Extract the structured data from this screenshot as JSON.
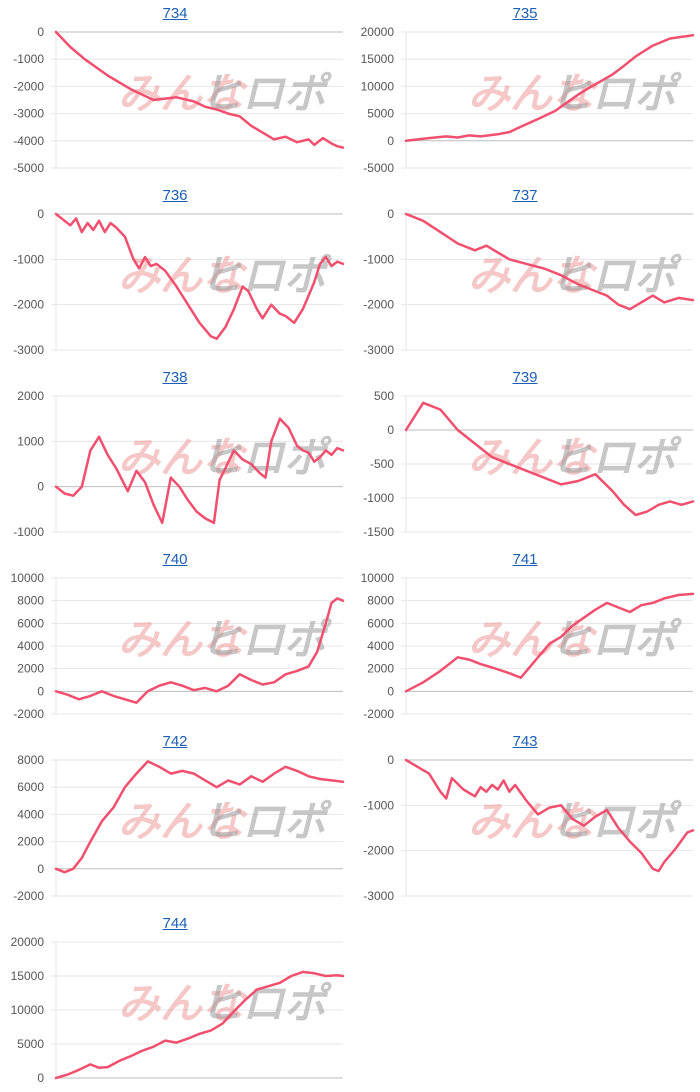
{
  "colors": {
    "line": "#f0506e",
    "grid": "#e6e6e6",
    "axis": "#bdbdbd",
    "title": "#1a5fb4"
  },
  "watermark": {
    "part1": "みんな",
    "part2": "ヒロポ"
  },
  "chart_data": [
    {
      "type": "line",
      "title": "734",
      "ylim": [
        -5000,
        0
      ],
      "yticks": [
        0,
        -1000,
        -2000,
        -3000,
        -4000,
        -5000
      ],
      "x": [
        0,
        5,
        10,
        18,
        26,
        34,
        42,
        48,
        52,
        56,
        60,
        64,
        68,
        72,
        76,
        80,
        84,
        88,
        90,
        93,
        96,
        98,
        100
      ],
      "values": [
        0,
        -550,
        -1000,
        -1600,
        -2100,
        -2500,
        -2400,
        -2550,
        -2750,
        -2850,
        -3000,
        -3100,
        -3450,
        -3700,
        -3950,
        -3850,
        -4050,
        -3950,
        -4150,
        -3900,
        -4100,
        -4200,
        -4250
      ]
    },
    {
      "type": "line",
      "title": "735",
      "ylim": [
        -5000,
        20000
      ],
      "yticks": [
        20000,
        15000,
        10000,
        5000,
        0,
        -5000
      ],
      "x": [
        0,
        8,
        14,
        18,
        22,
        26,
        32,
        36,
        40,
        46,
        52,
        56,
        60,
        64,
        68,
        72,
        76,
        80,
        86,
        92,
        100
      ],
      "values": [
        0,
        500,
        800,
        600,
        1000,
        800,
        1200,
        1600,
        2600,
        4000,
        5500,
        7000,
        8500,
        9800,
        11000,
        12200,
        13800,
        15500,
        17500,
        18800,
        19400
      ]
    },
    {
      "type": "line",
      "title": "736",
      "ylim": [
        -3000,
        0
      ],
      "yticks": [
        0,
        -1000,
        -2000,
        -3000
      ],
      "x": [
        0,
        3,
        5,
        7,
        9,
        11,
        13,
        15,
        17,
        19,
        21,
        24,
        27,
        29,
        31,
        33,
        35,
        38,
        42,
        46,
        50,
        54,
        56,
        59,
        62,
        65,
        67,
        70,
        72,
        75,
        78,
        80,
        83,
        86,
        88,
        90,
        92,
        94,
        96,
        98,
        100
      ],
      "values": [
        0,
        -150,
        -250,
        -100,
        -400,
        -200,
        -350,
        -150,
        -400,
        -200,
        -300,
        -500,
        -1000,
        -1200,
        -950,
        -1150,
        -1100,
        -1250,
        -1600,
        -2000,
        -2400,
        -2700,
        -2750,
        -2500,
        -2100,
        -1600,
        -1700,
        -2100,
        -2300,
        -2000,
        -2200,
        -2250,
        -2400,
        -2100,
        -1800,
        -1500,
        -1100,
        -950,
        -1150,
        -1050,
        -1100
      ]
    },
    {
      "type": "line",
      "title": "737",
      "ylim": [
        -3000,
        0
      ],
      "yticks": [
        0,
        -1000,
        -2000,
        -3000
      ],
      "x": [
        0,
        6,
        12,
        18,
        24,
        28,
        32,
        36,
        42,
        48,
        54,
        60,
        66,
        70,
        74,
        78,
        82,
        86,
        90,
        95,
        100
      ],
      "values": [
        0,
        -150,
        -400,
        -650,
        -800,
        -700,
        -850,
        -1000,
        -1100,
        -1200,
        -1350,
        -1550,
        -1700,
        -1800,
        -2000,
        -2100,
        -1950,
        -1800,
        -1950,
        -1850,
        -1900
      ]
    },
    {
      "type": "line",
      "title": "738",
      "ylim": [
        -1000,
        2000
      ],
      "yticks": [
        2000,
        1000,
        0,
        -1000
      ],
      "x": [
        0,
        3,
        6,
        9,
        12,
        15,
        18,
        21,
        25,
        28,
        31,
        34,
        37,
        40,
        43,
        46,
        49,
        52,
        55,
        57,
        59,
        62,
        65,
        68,
        71,
        73,
        75,
        78,
        81,
        84,
        86,
        88,
        90,
        92,
        94,
        96,
        98,
        100
      ],
      "values": [
        0,
        -150,
        -200,
        0,
        800,
        1100,
        700,
        400,
        -100,
        350,
        100,
        -400,
        -800,
        200,
        0,
        -300,
        -550,
        -700,
        -800,
        150,
        400,
        800,
        600,
        500,
        300,
        200,
        1000,
        1500,
        1300,
        900,
        800,
        750,
        550,
        650,
        800,
        700,
        850,
        800
      ]
    },
    {
      "type": "line",
      "title": "739",
      "ylim": [
        -1500,
        500
      ],
      "yticks": [
        500,
        0,
        -500,
        -1000,
        -1500
      ],
      "x": [
        0,
        6,
        12,
        18,
        24,
        30,
        36,
        42,
        48,
        54,
        60,
        66,
        72,
        76,
        80,
        84,
        88,
        92,
        96,
        100
      ],
      "values": [
        0,
        400,
        300,
        0,
        -200,
        -400,
        -500,
        -600,
        -700,
        -800,
        -750,
        -650,
        -900,
        -1100,
        -1250,
        -1200,
        -1100,
        -1050,
        -1100,
        -1050
      ]
    },
    {
      "type": "line",
      "title": "740",
      "ylim": [
        -2000,
        10000
      ],
      "yticks": [
        10000,
        8000,
        6000,
        4000,
        2000,
        0,
        -2000
      ],
      "x": [
        0,
        4,
        8,
        12,
        16,
        20,
        24,
        28,
        30,
        32,
        36,
        40,
        44,
        48,
        52,
        56,
        60,
        64,
        68,
        72,
        76,
        80,
        84,
        88,
        91,
        94,
        96,
        98,
        100
      ],
      "values": [
        0,
        -300,
        -700,
        -400,
        0,
        -400,
        -700,
        -1000,
        -500,
        0,
        500,
        800,
        500,
        100,
        300,
        0,
        500,
        1500,
        1000,
        600,
        800,
        1500,
        1800,
        2200,
        3500,
        6000,
        7800,
        8200,
        8000
      ]
    },
    {
      "type": "line",
      "title": "741",
      "ylim": [
        -2000,
        10000
      ],
      "yticks": [
        10000,
        8000,
        6000,
        4000,
        2000,
        0,
        -2000
      ],
      "x": [
        0,
        6,
        12,
        18,
        22,
        26,
        30,
        36,
        40,
        42,
        46,
        50,
        54,
        58,
        62,
        66,
        70,
        74,
        78,
        82,
        86,
        90,
        95,
        100
      ],
      "values": [
        0,
        800,
        1800,
        3000,
        2800,
        2400,
        2100,
        1600,
        1200,
        1800,
        3000,
        4200,
        4800,
        5800,
        6500,
        7200,
        7800,
        7400,
        7000,
        7600,
        7800,
        8200,
        8500,
        8600
      ]
    },
    {
      "type": "line",
      "title": "742",
      "ylim": [
        -2000,
        8000
      ],
      "yticks": [
        8000,
        6000,
        4000,
        2000,
        0,
        -2000
      ],
      "x": [
        0,
        3,
        6,
        9,
        12,
        16,
        20,
        24,
        28,
        32,
        36,
        40,
        44,
        48,
        52,
        56,
        60,
        64,
        68,
        72,
        76,
        80,
        84,
        88,
        92,
        96,
        100
      ],
      "values": [
        0,
        -250,
        0,
        800,
        2000,
        3500,
        4500,
        6000,
        7000,
        7900,
        7500,
        7000,
        7200,
        7000,
        6500,
        6000,
        6500,
        6200,
        6800,
        6400,
        7000,
        7500,
        7200,
        6800,
        6600,
        6500,
        6400
      ]
    },
    {
      "type": "line",
      "title": "743",
      "ylim": [
        -3000,
        0
      ],
      "yticks": [
        0,
        -1000,
        -2000,
        -3000
      ],
      "x": [
        0,
        4,
        8,
        12,
        14,
        16,
        20,
        24,
        26,
        28,
        30,
        32,
        34,
        36,
        38,
        42,
        46,
        50,
        54,
        58,
        62,
        66,
        70,
        72,
        74,
        78,
        82,
        86,
        88,
        90,
        94,
        98,
        100
      ],
      "values": [
        0,
        -150,
        -300,
        -700,
        -850,
        -400,
        -650,
        -800,
        -600,
        -700,
        -550,
        -650,
        -450,
        -700,
        -550,
        -900,
        -1200,
        -1050,
        -1000,
        -1300,
        -1450,
        -1250,
        -1100,
        -1300,
        -1500,
        -1800,
        -2050,
        -2400,
        -2450,
        -2250,
        -1950,
        -1600,
        -1550
      ]
    },
    {
      "type": "line",
      "title": "744",
      "ylim": [
        0,
        20000
      ],
      "yticks": [
        20000,
        15000,
        10000,
        5000,
        0
      ],
      "x": [
        0,
        4,
        8,
        12,
        15,
        18,
        22,
        26,
        30,
        34,
        38,
        42,
        46,
        50,
        54,
        58,
        62,
        66,
        70,
        74,
        78,
        82,
        86,
        90,
        94,
        98,
        100
      ],
      "values": [
        0,
        500,
        1200,
        2000,
        1500,
        1600,
        2500,
        3200,
        4000,
        4600,
        5500,
        5200,
        5800,
        6500,
        7000,
        8000,
        9800,
        11500,
        13000,
        13500,
        14000,
        15000,
        15600,
        15400,
        15000,
        15100,
        15000
      ]
    }
  ]
}
